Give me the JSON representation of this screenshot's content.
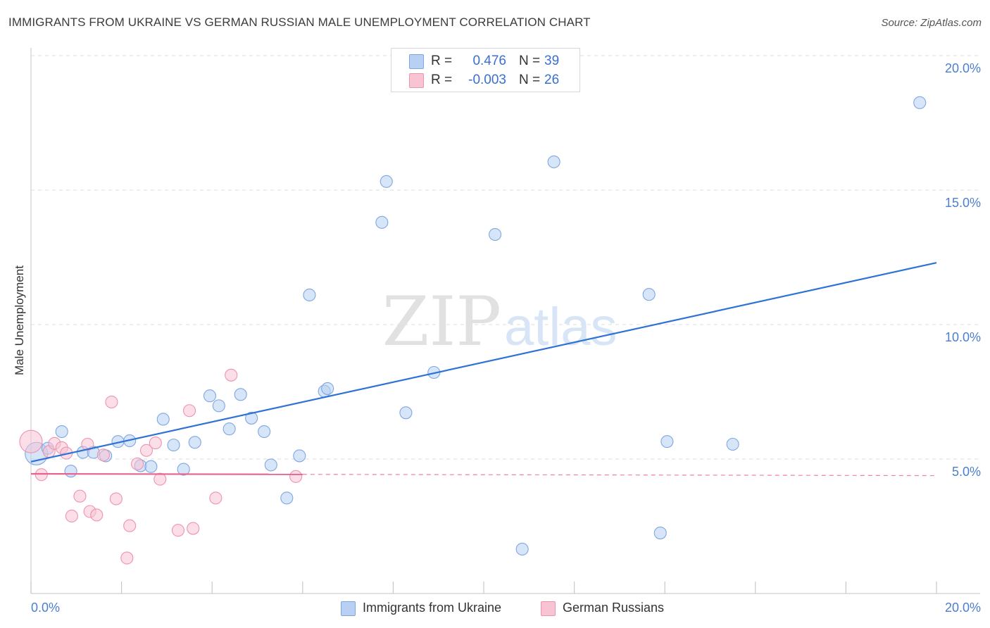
{
  "header": {
    "title": "IMMIGRANTS FROM UKRAINE VS GERMAN RUSSIAN MALE UNEMPLOYMENT CORRELATION CHART",
    "source": "Source: ZipAtlas.com"
  },
  "watermark": {
    "part1": "ZIP",
    "part2": "atlas"
  },
  "colors": {
    "blue_fill": "#b7d0f3",
    "blue_stroke": "#7fa6e0",
    "blue_line": "#2f72d6",
    "pink_fill": "#f8c3d3",
    "pink_stroke": "#ee93ae",
    "pink_line": "#e8628d",
    "axis_text": "#4a7fd0"
  },
  "legend": {
    "rows": [
      {
        "swatch": "blue",
        "r_label": "R =",
        "r_value": "0.476",
        "n_label": "N =",
        "n_value": "39"
      },
      {
        "swatch": "pink",
        "r_label": "R =",
        "r_value": "-0.003",
        "n_label": "N =",
        "n_value": "26"
      }
    ]
  },
  "chart_data": {
    "type": "scatter",
    "title": "IMMIGRANTS FROM UKRAINE VS GERMAN RUSSIAN MALE UNEMPLOYMENT CORRELATION CHART",
    "xlabel": "",
    "ylabel": "Male Unemployment",
    "xlim": [
      0,
      0.2
    ],
    "ylim": [
      0,
      0.2
    ],
    "x_tick_labels": [
      "0.0%",
      "20.0%"
    ],
    "y_ticks": [
      0.05,
      0.1,
      0.15,
      0.2
    ],
    "y_tick_labels": [
      "5.0%",
      "10.0%",
      "15.0%",
      "20.0%"
    ],
    "grid": true,
    "legend_position": "bottom",
    "series": [
      {
        "name": "Immigrants from Ukraine",
        "color": "blue",
        "r": 0.476,
        "n": 39,
        "trend": {
          "x0": 0.0,
          "y0": 0.049,
          "x1": 0.2,
          "y1": 0.123,
          "dashed_x_end": 0.2
        },
        "points": [
          [
            0.0012,
            0.052,
            "big"
          ],
          [
            0.0037,
            0.054
          ],
          [
            0.0068,
            0.0602
          ],
          [
            0.0088,
            0.0455
          ],
          [
            0.0115,
            0.0525
          ],
          [
            0.0138,
            0.0525
          ],
          [
            0.0165,
            0.0512
          ],
          [
            0.0192,
            0.0565
          ],
          [
            0.0218,
            0.0568
          ],
          [
            0.0242,
            0.0475
          ],
          [
            0.0265,
            0.0472
          ],
          [
            0.0292,
            0.0648
          ],
          [
            0.0315,
            0.0552
          ],
          [
            0.0337,
            0.0462
          ],
          [
            0.0362,
            0.0562
          ],
          [
            0.0395,
            0.0735
          ],
          [
            0.0415,
            0.0698
          ],
          [
            0.0438,
            0.0612
          ],
          [
            0.0463,
            0.074
          ],
          [
            0.0487,
            0.0652
          ],
          [
            0.0515,
            0.0602
          ],
          [
            0.053,
            0.0478
          ],
          [
            0.0565,
            0.0355
          ],
          [
            0.0593,
            0.0512
          ],
          [
            0.0615,
            0.111
          ],
          [
            0.0648,
            0.0752
          ],
          [
            0.0655,
            0.0762
          ],
          [
            0.0775,
            0.138
          ],
          [
            0.0785,
            0.1532
          ],
          [
            0.0828,
            0.0672
          ],
          [
            0.089,
            0.0822
          ],
          [
            0.1025,
            0.1335
          ],
          [
            0.1085,
            0.0165
          ],
          [
            0.1155,
            0.1605
          ],
          [
            0.1365,
            0.1112
          ],
          [
            0.139,
            0.0225
          ],
          [
            0.1405,
            0.0565
          ],
          [
            0.155,
            0.0555
          ],
          [
            0.1963,
            0.1825
          ]
        ]
      },
      {
        "name": "German Russians",
        "color": "pink",
        "r": -0.003,
        "n": 26,
        "trend": {
          "x0": 0.0,
          "y0": 0.0445,
          "x1": 0.06,
          "y1": 0.0443,
          "dashed_x_end": 0.2
        },
        "points": [
          [
            0.0,
            0.0565,
            "big"
          ],
          [
            0.0023,
            0.0442
          ],
          [
            0.004,
            0.0528
          ],
          [
            0.0052,
            0.0558
          ],
          [
            0.0068,
            0.0542
          ],
          [
            0.0078,
            0.0522
          ],
          [
            0.009,
            0.0288
          ],
          [
            0.0108,
            0.0362
          ],
          [
            0.0125,
            0.0555
          ],
          [
            0.013,
            0.0305
          ],
          [
            0.0145,
            0.0292
          ],
          [
            0.016,
            0.0515
          ],
          [
            0.0178,
            0.0712
          ],
          [
            0.0188,
            0.0352
          ],
          [
            0.0212,
            0.0132
          ],
          [
            0.0218,
            0.0252
          ],
          [
            0.0235,
            0.0482
          ],
          [
            0.0255,
            0.0532
          ],
          [
            0.0275,
            0.056
          ],
          [
            0.0285,
            0.0425
          ],
          [
            0.0325,
            0.0235
          ],
          [
            0.035,
            0.068
          ],
          [
            0.0358,
            0.0242
          ],
          [
            0.0408,
            0.0355
          ],
          [
            0.0442,
            0.0812
          ],
          [
            0.0585,
            0.0435
          ]
        ]
      }
    ]
  }
}
